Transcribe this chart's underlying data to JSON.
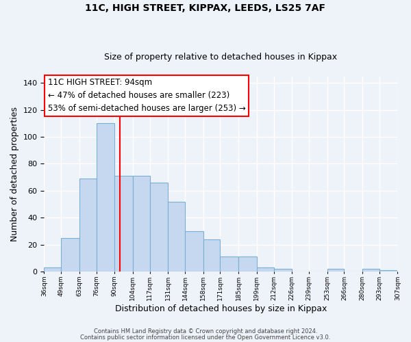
{
  "title_line1": "11C, HIGH STREET, KIPPAX, LEEDS, LS25 7AF",
  "title_line2": "Size of property relative to detached houses in Kippax",
  "xlabel": "Distribution of detached houses by size in Kippax",
  "ylabel": "Number of detached properties",
  "bar_color": "#c5d8f0",
  "bar_edgecolor": "#7bafd4",
  "vline_x": 94,
  "vline_color": "red",
  "annotation_title": "11C HIGH STREET: 94sqm",
  "annotation_line1": "← 47% of detached houses are smaller (223)",
  "annotation_line2": "53% of semi-detached houses are larger (253) →",
  "annotation_box_edgecolor": "red",
  "annotation_box_facecolor": "white",
  "bins": [
    36,
    49,
    63,
    76,
    90,
    104,
    117,
    131,
    144,
    158,
    171,
    185,
    199,
    212,
    226,
    239,
    253,
    266,
    280,
    293,
    307
  ],
  "counts": [
    3,
    25,
    69,
    110,
    71,
    71,
    66,
    52,
    30,
    24,
    11,
    11,
    3,
    2,
    0,
    0,
    2,
    0,
    2,
    1
  ],
  "ylim": [
    0,
    145
  ],
  "yticks": [
    0,
    20,
    40,
    60,
    80,
    100,
    120,
    140
  ],
  "footer_line1": "Contains HM Land Registry data © Crown copyright and database right 2024.",
  "footer_line2": "Contains public sector information licensed under the Open Government Licence v3.0.",
  "background_color": "#eef2f9"
}
